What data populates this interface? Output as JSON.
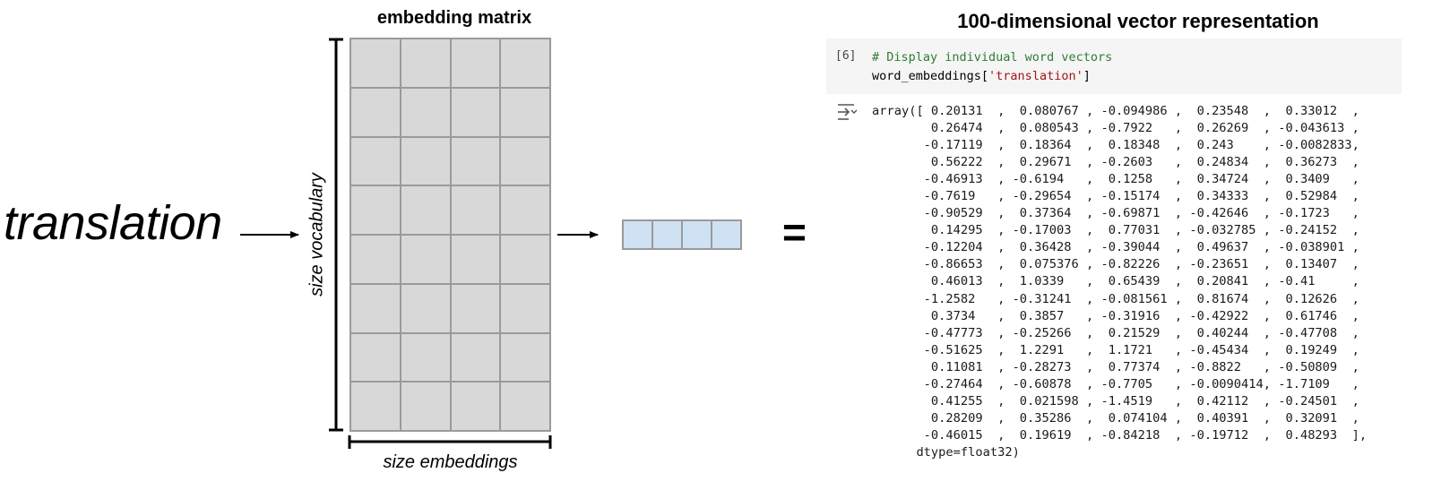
{
  "word": "translation",
  "matrix": {
    "title": "embedding matrix",
    "rows": 8,
    "cols": 4,
    "vertical_label": "size vocabulary",
    "horizontal_label": "size embeddings",
    "cell_color": "#d9d8d9"
  },
  "vector": {
    "cells": 4,
    "cell_color": "#cfe2f3"
  },
  "equals_sign": "=",
  "notebook": {
    "title": "100-dimensional vector representation",
    "execution_count": "[6]",
    "code_comment": "# Display individual word vectors",
    "code_prefix": "word_embeddings[",
    "code_string": "'translation'",
    "code_suffix": "]",
    "output_icon": "output-expand-icon",
    "output_lines": [
      "array([ 0.20131  ,  0.080767 , -0.094986 ,  0.23548  ,  0.33012  ,",
      "        0.26474  ,  0.080543 , -0.7922   ,  0.26269  , -0.043613 ,",
      "       -0.17119  ,  0.18364  ,  0.18348  ,  0.243    , -0.0082833,",
      "        0.56222  ,  0.29671  , -0.2603   ,  0.24834  ,  0.36273  ,",
      "       -0.46913  , -0.6194   ,  0.1258   ,  0.34724  ,  0.3409   ,",
      "       -0.7619   , -0.29654  , -0.15174  ,  0.34333  ,  0.52984  ,",
      "       -0.90529  ,  0.37364  , -0.69871  , -0.42646  , -0.1723   ,",
      "        0.14295  , -0.17003  ,  0.77031  , -0.032785 , -0.24152  ,",
      "       -0.12204  ,  0.36428  , -0.39044  ,  0.49637  , -0.038901 ,",
      "       -0.86653  ,  0.075376 , -0.82226  , -0.23651  ,  0.13407  ,",
      "        0.46013  ,  1.0339   ,  0.65439  ,  0.20841  , -0.41     ,",
      "       -1.2582   , -0.31241  , -0.081561 ,  0.81674  ,  0.12626  ,",
      "        0.3734   ,  0.3857   , -0.31916  , -0.42922  ,  0.61746  ,",
      "       -0.47773  , -0.25266  ,  0.21529  ,  0.40244  , -0.47708  ,",
      "       -0.51625  ,  1.2291   ,  1.1721   , -0.45434  ,  0.19249  ,",
      "        0.11081  , -0.28273  ,  0.77374  , -0.8822   , -0.50809  ,",
      "       -0.27464  , -0.60878  , -0.7705   , -0.0090414, -1.7109   ,",
      "        0.41255  ,  0.021598 , -1.4519   ,  0.42112  , -0.24501  ,",
      "        0.28209  ,  0.35286  ,  0.074104 ,  0.40391  ,  0.32091  ,",
      "       -0.46015  ,  0.19619  , -0.84218  , -0.19712  ,  0.48293  ],",
      "      dtype=float32)"
    ]
  }
}
